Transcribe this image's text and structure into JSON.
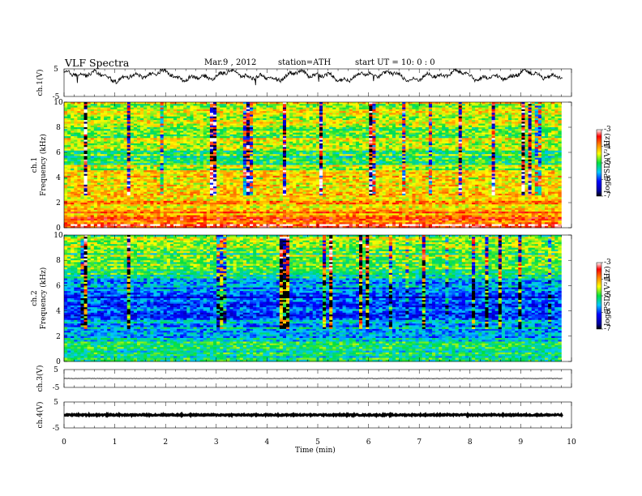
{
  "header": {
    "title": "VLF  Spectra",
    "date": "Mar.9  , 2012",
    "station": "station=ATH",
    "start": "start  UT  =    10: 0  : 0"
  },
  "colors": {
    "spectrum_low": "#0000b0",
    "spectrum_mid": "#28c832",
    "spectrum_high": "#ff2010",
    "trace": "#000000"
  },
  "chart_data": [
    {
      "type": "line",
      "name": "ch1",
      "ylabel": "ch.1(V)",
      "ylim": [
        -5,
        5
      ],
      "yticks": [
        "5",
        "-5"
      ],
      "xlim": [
        0,
        10
      ],
      "description_values": {
        "mean": 2.5,
        "amplitude": 1.5
      }
    },
    {
      "type": "heatmap",
      "name": "ch1-spectrogram",
      "ylabel_top": "ch.1",
      "ylabel": "Frequency  (kHz)",
      "ylim": [
        0,
        10
      ],
      "yticks": [
        "0",
        "2",
        "4",
        "6",
        "8",
        "10"
      ],
      "xlim": [
        0,
        9.8
      ],
      "colorbar": {
        "label": "log(PSD)(V²/Hz)",
        "ticks": [
          "-3",
          "-4",
          "-5",
          "-6",
          "-7"
        ],
        "range": [
          -7,
          -3
        ]
      },
      "band_levels": [
        {
          "f": 0.2,
          "level": -3.3
        },
        {
          "f": 0.6,
          "level": -3.8
        },
        {
          "f": 1.0,
          "level": -4.0
        },
        {
          "f": 2.0,
          "level": -4.1
        },
        {
          "f": 3.0,
          "level": -4.2
        },
        {
          "f": 4.0,
          "level": -4.3
        },
        {
          "f": 4.8,
          "level": -4.6
        },
        {
          "f": 5.5,
          "level": -5.2
        },
        {
          "f": 6.2,
          "level": -4.8
        },
        {
          "f": 7.0,
          "level": -4.6
        },
        {
          "f": 8.0,
          "level": -4.6
        },
        {
          "f": 9.0,
          "level": -4.5
        },
        {
          "f": 10.0,
          "level": -4.5
        }
      ]
    },
    {
      "type": "heatmap",
      "name": "ch2-spectrogram",
      "ylabel_top": "ch.2",
      "ylabel": "Frequency  (kHz)",
      "ylim": [
        0,
        10
      ],
      "yticks": [
        "0",
        "2",
        "4",
        "6",
        "8",
        "10"
      ],
      "xlim": [
        0,
        9.8
      ],
      "colorbar": {
        "label": "log(PSD)(V²/Hz)",
        "ticks": [
          "-3",
          "-4",
          "-5",
          "-6",
          "-7"
        ],
        "range": [
          -7,
          -3
        ]
      },
      "band_levels": [
        {
          "f": 0.3,
          "level": -5.2
        },
        {
          "f": 1.0,
          "level": -5.3
        },
        {
          "f": 2.0,
          "level": -5.4
        },
        {
          "f": 3.0,
          "level": -5.7
        },
        {
          "f": 4.0,
          "level": -5.9
        },
        {
          "f": 5.0,
          "level": -6.1
        },
        {
          "f": 6.0,
          "level": -5.6
        },
        {
          "f": 7.0,
          "level": -5.1
        },
        {
          "f": 8.0,
          "level": -4.9
        },
        {
          "f": 9.0,
          "level": -4.8
        },
        {
          "f": 10.0,
          "level": -4.8
        }
      ]
    },
    {
      "type": "line",
      "name": "ch3",
      "ylabel": "ch.3(V)",
      "ylim": [
        -5,
        5
      ],
      "yticks": [
        "5",
        "-5"
      ],
      "xlim": [
        0,
        10
      ],
      "description_values": {
        "mean": 0.0,
        "amplitude": 0.1
      }
    },
    {
      "type": "line",
      "name": "ch4",
      "ylabel": "ch.4(V)",
      "ylim": [
        -5,
        5
      ],
      "yticks": [
        "5",
        "-5"
      ],
      "xlim": [
        0,
        10
      ],
      "description_values": {
        "mean": 0.0,
        "amplitude": 0.25
      }
    }
  ],
  "xaxis": {
    "label": "Time  (min)",
    "ticks": [
      "0",
      "1",
      "2",
      "3",
      "4",
      "5",
      "6",
      "7",
      "8",
      "9",
      "10"
    ]
  }
}
